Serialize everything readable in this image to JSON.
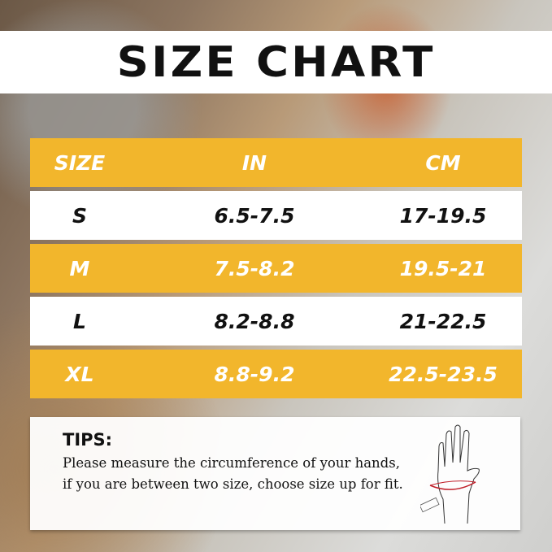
{
  "title": "SIZE CHART",
  "table": {
    "headers": [
      "SIZE",
      "IN",
      "CM"
    ],
    "rows": [
      {
        "size": "S",
        "in": "6.5-7.5",
        "cm": "17-19.5"
      },
      {
        "size": "M",
        "in": "7.5-8.2",
        "cm": "19.5-21"
      },
      {
        "size": "L",
        "in": "8.2-8.8",
        "cm": "21-22.5"
      },
      {
        "size": "XL",
        "in": "8.8-9.2",
        "cm": "22.5-23.5"
      }
    ]
  },
  "tips": {
    "heading": "TIPS:",
    "text": "Please measure the circumference of your hands, if you are between two size, choose size up for fit."
  },
  "colors": {
    "accent": "#f2b62c",
    "measure_line": "#c0202a"
  }
}
